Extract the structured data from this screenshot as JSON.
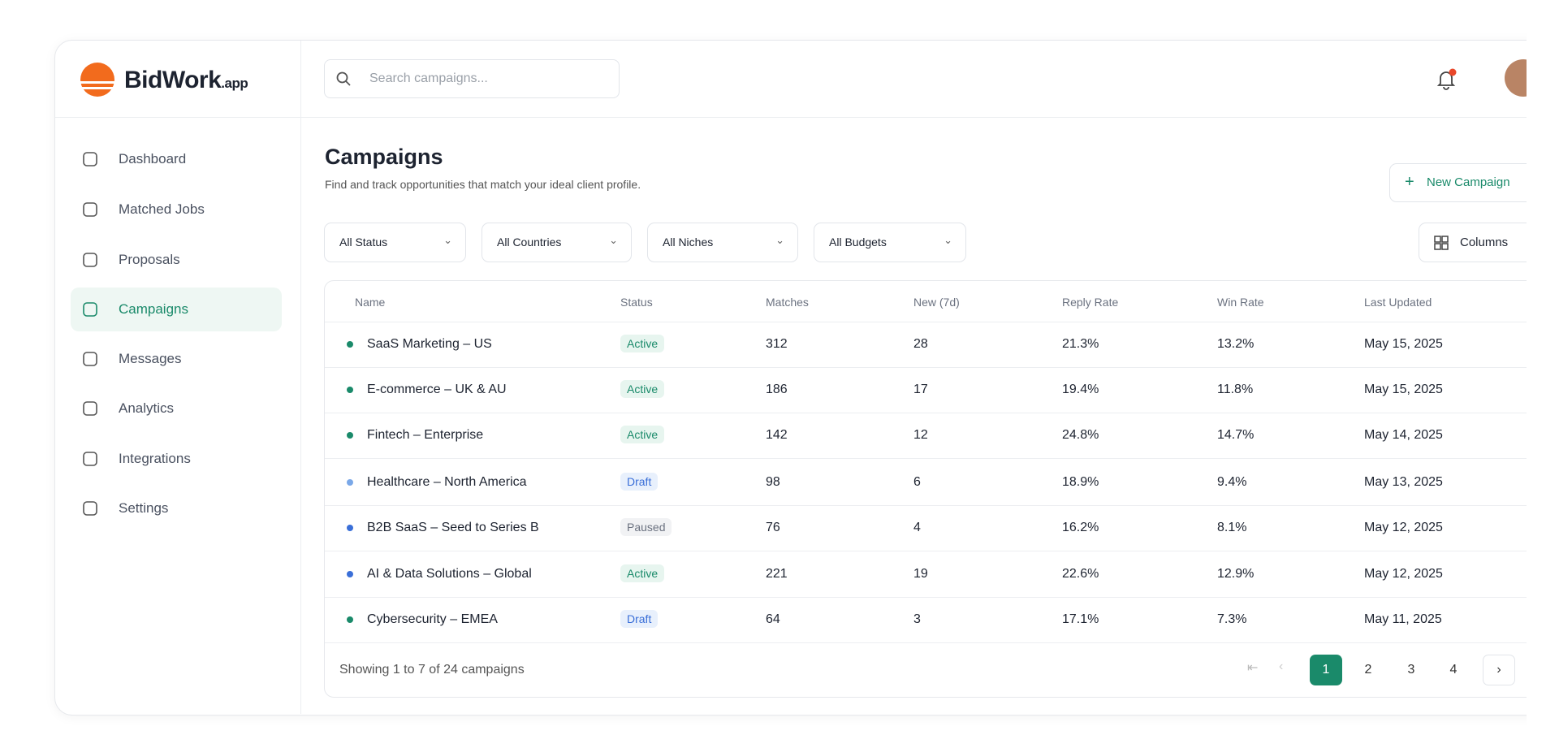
{
  "brand": {
    "name": "BidWork",
    "suffix": ".app"
  },
  "search": {
    "placeholder": "Search campaigns..."
  },
  "nav": [
    "Dashboard",
    "Matched Jobs",
    "Proposals",
    "Campaigns",
    "Messages",
    "Analytics",
    "Integrations",
    "Settings"
  ],
  "page": {
    "title": "Campaigns",
    "subtitle": "Find and track opportunities that match your ideal client profile.",
    "new_button": "New Campaign",
    "columns_button": "Columns"
  },
  "filters": [
    "All Status",
    "All Countries",
    "All Niches",
    "All Budgets"
  ],
  "table": {
    "headers": [
      "Name",
      "Status",
      "Matches",
      "New (7d)",
      "Reply Rate",
      "Win Rate",
      "Last Updated"
    ],
    "rows": [
      [
        "SaaS Marketing – US",
        "Active",
        "312",
        "28",
        "21.3%",
        "13.2%",
        "May 15, 2025"
      ],
      [
        "E-commerce – UK & AU",
        "Active",
        "186",
        "17",
        "19.4%",
        "11.8%",
        "May 15, 2025"
      ],
      [
        "Fintech – Enterprise",
        "Active",
        "142",
        "12",
        "24.8%",
        "14.7%",
        "May 14, 2025"
      ],
      [
        "Healthcare – North America",
        "Draft",
        "98",
        "6",
        "18.9%",
        "9.4%",
        "May 13, 2025"
      ],
      [
        "B2B SaaS – Seed to Series B",
        "Paused",
        "76",
        "4",
        "16.2%",
        "8.1%",
        "May 12, 2025"
      ],
      [
        "AI & Data Solutions – Global",
        "Active",
        "221",
        "19",
        "22.6%",
        "12.9%",
        "May 12, 2025"
      ],
      [
        "Cybersecurity – EMEA",
        "Draft",
        "64",
        "3",
        "17.1%",
        "7.3%",
        "May 11, 2025"
      ]
    ],
    "dot_colors": [
      "#1a8a6a",
      "#1a8a6a",
      "#1a8a6a",
      "#7aa8e8",
      "#3a6fd8",
      "#3a6fd8",
      "#1a8a6a"
    ]
  },
  "footer": {
    "showing": "Showing 1 to 7 of 24 campaigns",
    "pages": [
      "1",
      "2",
      "3",
      "4"
    ]
  }
}
